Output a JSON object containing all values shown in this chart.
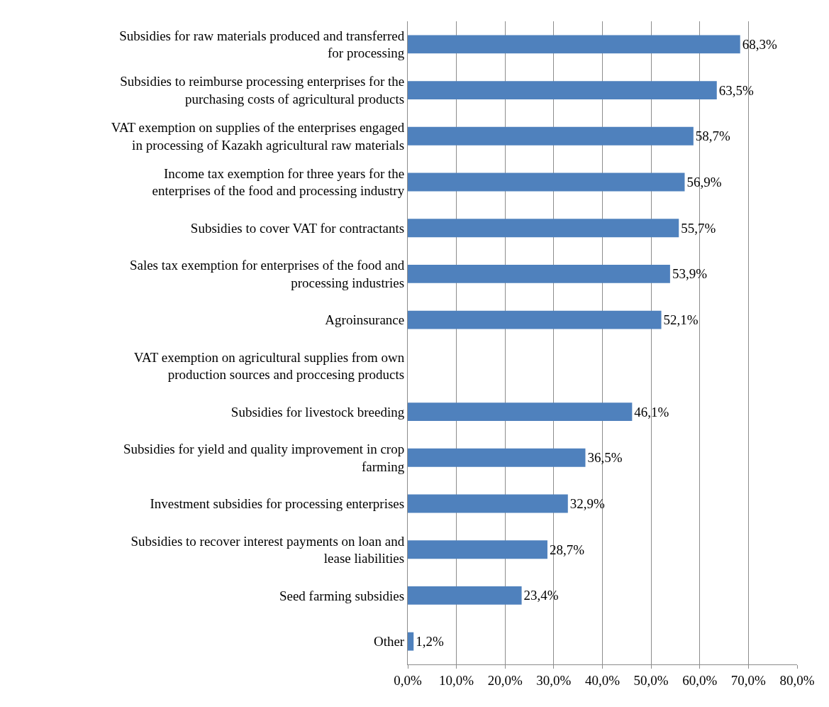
{
  "chart_data": {
    "type": "bar",
    "orientation": "horizontal",
    "categories": [
      "Subsidies for raw materials produced and transferred for processing",
      "Subsidies to reimburse processing enterprises for the purchasing costs of agricultural products",
      "VAT exemption on supplies of the enterprises engaged in processing of Kazakh agricultural raw materials",
      "Income tax exemption for three years for the enterprises of the food and processing industry",
      "Subsidies to cover VAT for contractants",
      "Sales tax exemption for enterprises of the food and processing industries",
      "Agroinsurance",
      "VAT exemption on agricultural supplies from own production sources and proccesing products",
      "Subsidies for livestock breeding",
      "Subsidies for yield and quality improvement in crop farming",
      "Investment subsidies for processing enterprises",
      "Subsidies to recover interest payments on loan and lease liabilities",
      "Seed farming subsidies",
      "Other"
    ],
    "values": [
      68.3,
      63.5,
      58.7,
      56.9,
      55.7,
      53.9,
      52.1,
      null,
      46.1,
      36.5,
      32.9,
      28.7,
      23.4,
      1.2
    ],
    "value_labels": [
      "68,3%",
      "63,5%",
      "58,7%",
      "56,9%",
      "55,7%",
      "53,9%",
      "52,1%",
      null,
      "46,1%",
      "36,5%",
      "32,9%",
      "28,7%",
      "23,4%",
      "1,2%"
    ],
    "color": "#4f81bd",
    "xlim": [
      0,
      80
    ],
    "xticks": [
      {
        "value": 0,
        "label": "0,0%"
      },
      {
        "value": 10,
        "label": "10,0%"
      },
      {
        "value": 20,
        "label": "20,0%"
      },
      {
        "value": 30,
        "label": "30,0%"
      },
      {
        "value": 40,
        "label": "40,0%"
      },
      {
        "value": 50,
        "label": "50,0%"
      },
      {
        "value": 60,
        "label": "60,0%"
      },
      {
        "value": 70,
        "label": "70,0%"
      },
      {
        "value": 80,
        "label": "80,0%"
      }
    ],
    "grid": "x"
  }
}
